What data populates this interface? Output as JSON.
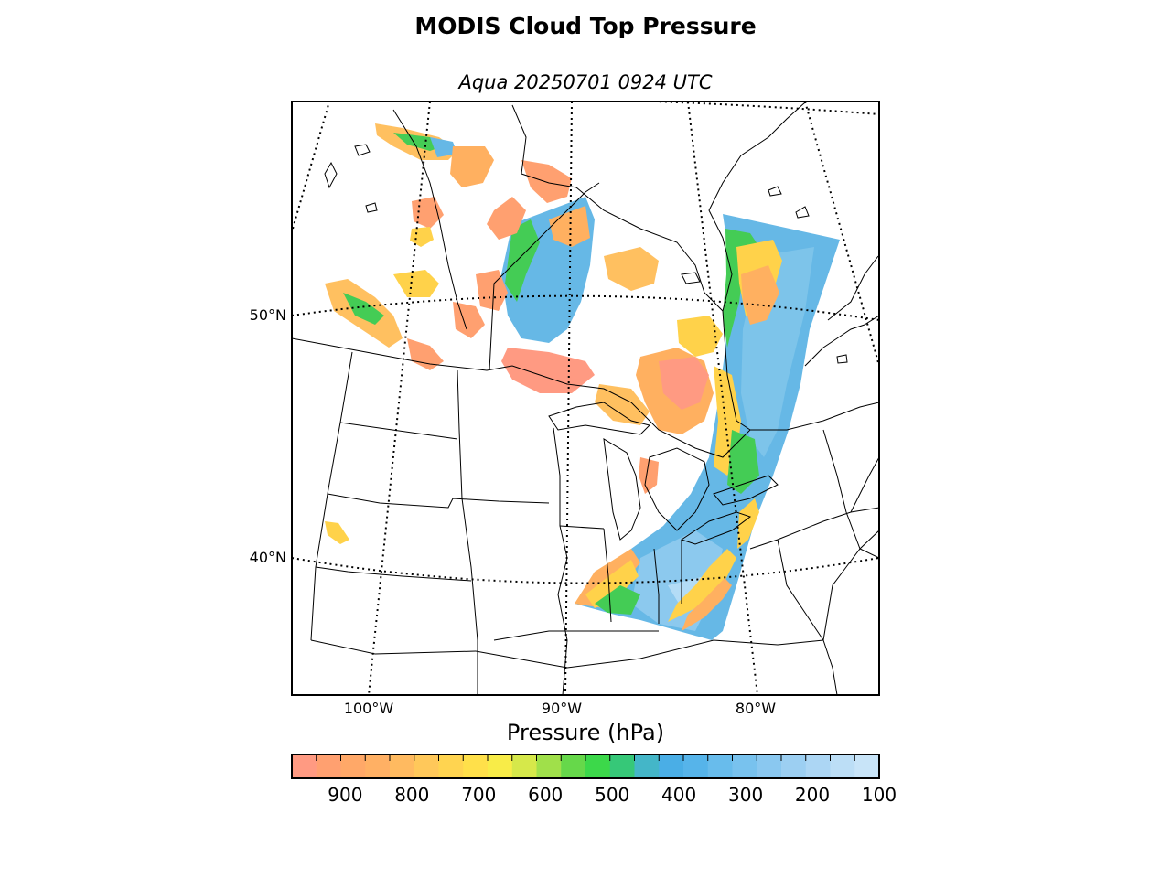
{
  "title": "MODIS Cloud Top Pressure",
  "subtitle": "Aqua 20250701 0924 UTC",
  "map": {
    "lat_labels": [
      "50°N",
      "40°N"
    ],
    "lon_labels": [
      "100°W",
      "90°W",
      "80°W"
    ],
    "graticule": "dotted",
    "field": "cloud top pressure swath",
    "gridlines": true
  },
  "colorbar": {
    "label": "Pressure (hPa)",
    "tick_labels": [
      "900",
      "800",
      "700",
      "600",
      "500",
      "400",
      "300",
      "200",
      "100"
    ],
    "range_hpa": [
      980,
      100
    ],
    "colors": [
      "#ff9a82",
      "#ffa070",
      "#ffa868",
      "#ffb064",
      "#ffba60",
      "#ffc85a",
      "#ffd450",
      "#ffe04a",
      "#f8ec48",
      "#d6e84a",
      "#a0e04a",
      "#66d84a",
      "#3cd84a",
      "#36c878",
      "#44b6c8",
      "#4aaee6",
      "#56b4ea",
      "#68bcec",
      "#78c2ee",
      "#8ac8f0",
      "#9ccff2",
      "#acd6f4",
      "#bcdef6",
      "#c8e4f8"
    ]
  }
}
